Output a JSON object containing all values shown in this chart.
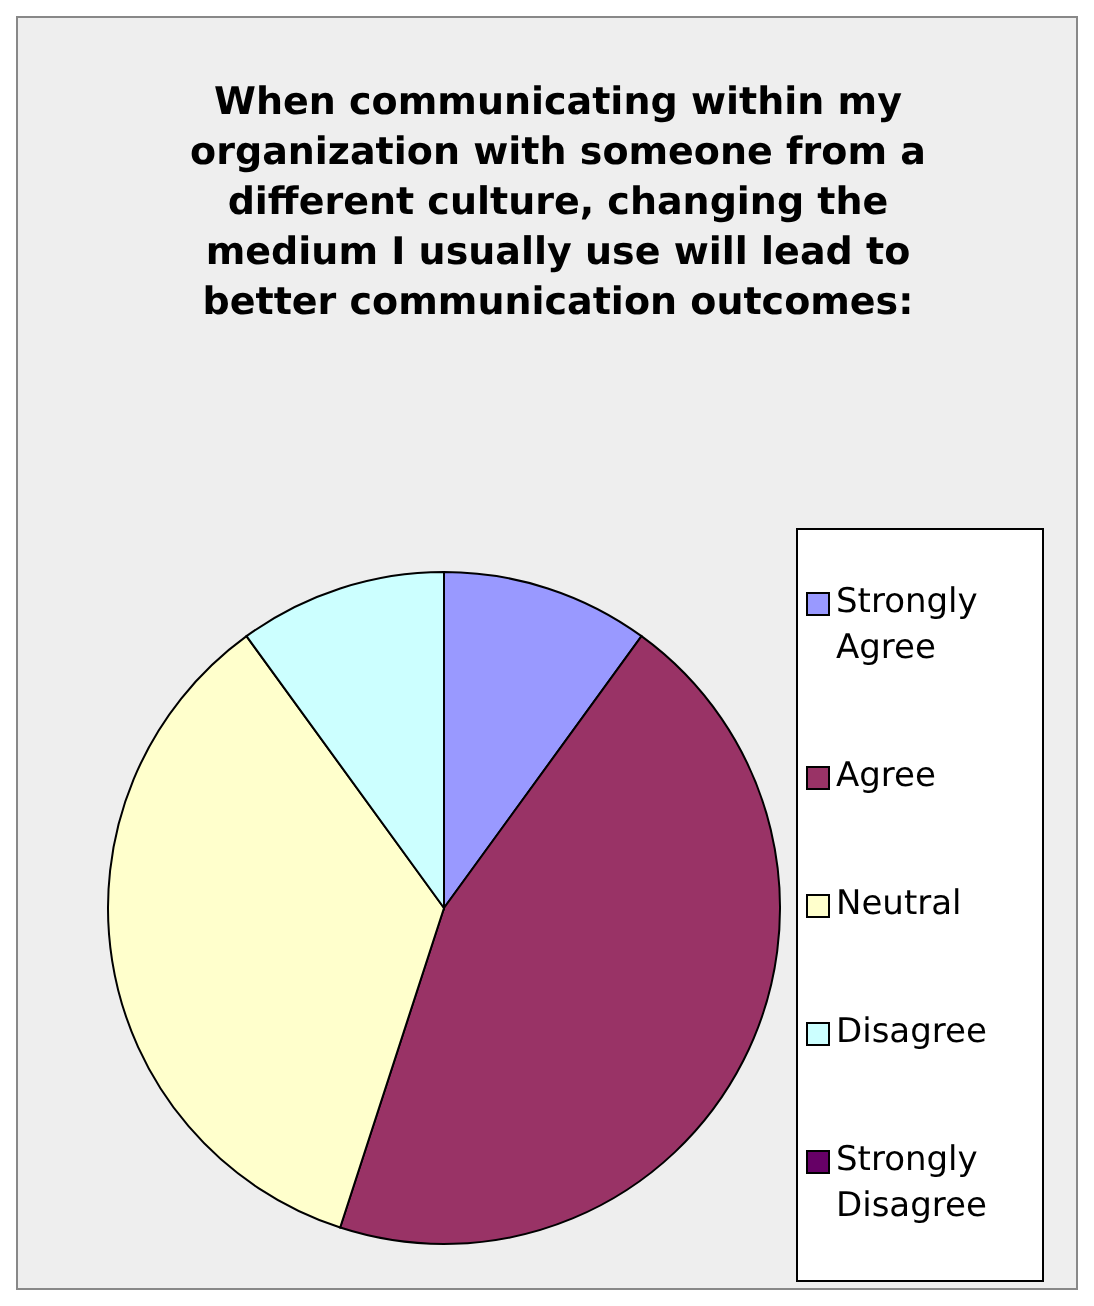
{
  "chart_data": {
    "type": "pie",
    "title": "When communicating within my organization with someone from a different culture, changing the medium I usually use will lead to better communication outcomes:",
    "categories": [
      "Strongly Agree",
      "Agree",
      "Neutral",
      "Disagree",
      "Strongly Disagree"
    ],
    "values": [
      10,
      45,
      35,
      10,
      0
    ],
    "colors": [
      "#9999ff",
      "#993366",
      "#ffffcc",
      "#ccffff",
      "#660066"
    ],
    "legend": "right"
  }
}
